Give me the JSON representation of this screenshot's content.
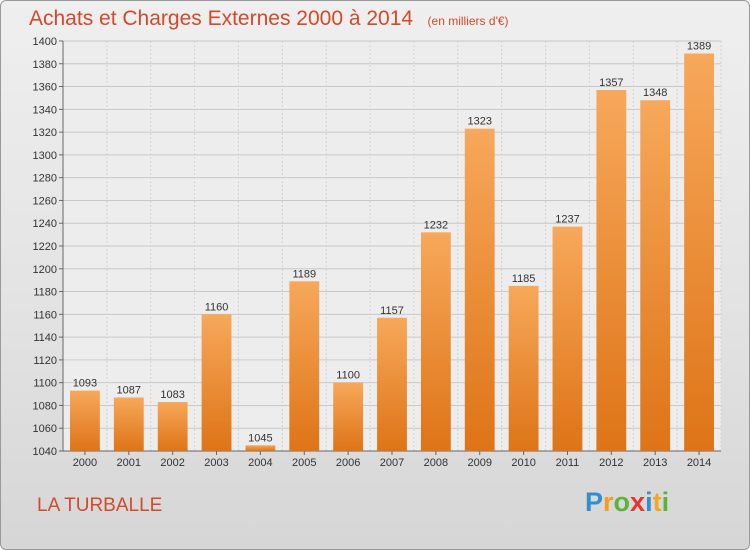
{
  "chart_data": {
    "type": "bar",
    "title": "Achats et Charges Externes 2000 à 2014",
    "subtitle": "(en milliers d'€)",
    "categories": [
      "2000",
      "2001",
      "2002",
      "2003",
      "2004",
      "2005",
      "2006",
      "2007",
      "2008",
      "2009",
      "2010",
      "2011",
      "2012",
      "2013",
      "2014"
    ],
    "values": [
      1093,
      1087,
      1083,
      1160,
      1045,
      1189,
      1100,
      1157,
      1232,
      1323,
      1185,
      1237,
      1357,
      1348,
      1389
    ],
    "ylim": [
      1040,
      1400
    ],
    "yticks": [
      1040,
      1060,
      1080,
      1100,
      1120,
      1140,
      1160,
      1180,
      1200,
      1220,
      1240,
      1260,
      1280,
      1300,
      1320,
      1340,
      1360,
      1380,
      1400
    ],
    "grid": true,
    "bar_color": "#f0892c"
  },
  "footer": {
    "city": "LA TURBALLE",
    "logo_text": "Proxiti"
  },
  "colors": {
    "title": "#d24a2a",
    "bar_top": "#f7a85a",
    "bar_bottom": "#e07a1c"
  }
}
